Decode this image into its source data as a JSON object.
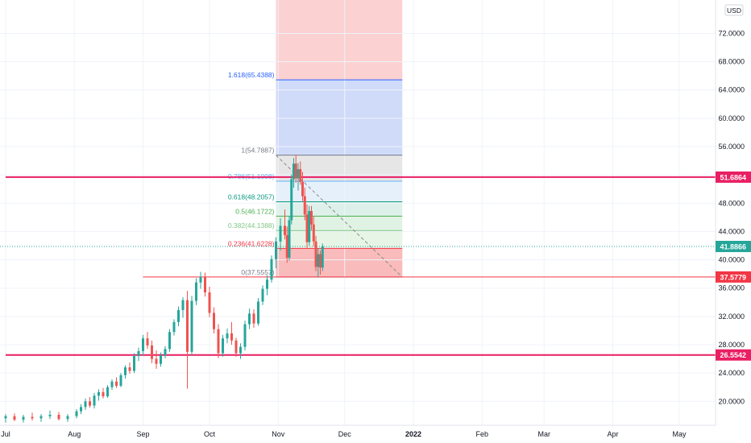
{
  "chart_data": {
    "type": "candlestick",
    "currency": "USD",
    "y_axis": {
      "ticks": [
        "20.0000",
        "24.0000",
        "28.0000",
        "32.0000",
        "36.0000",
        "40.0000",
        "44.0000",
        "48.0000",
        "52.0000",
        "56.0000",
        "60.0000",
        "64.0000",
        "68.0000",
        "72.0000"
      ],
      "tick_values": [
        20,
        24,
        28,
        32,
        36,
        40,
        44,
        48,
        52,
        56,
        60,
        64,
        68,
        72
      ],
      "range": [
        17.3,
        76.5
      ]
    },
    "x_axis": {
      "labels": [
        "Jul",
        "Aug",
        "Sep",
        "Oct",
        "Nov",
        "Dec",
        "2022",
        "Feb",
        "Mar",
        "Apr",
        "May"
      ],
      "label_dates": [
        "2021-07-01",
        "2021-08-01",
        "2021-09-01",
        "2021-10-01",
        "2021-11-01",
        "2021-12-01",
        "2022-01-01",
        "2022-02-01",
        "2022-03-01",
        "2022-04-01",
        "2022-05-01"
      ],
      "range": [
        "2021-07-01",
        "2022-05-31"
      ]
    },
    "horizontal_lines": [
      {
        "value": 51.6864,
        "label": "51.6864",
        "color": "#e91e63",
        "start": "2021-07-01"
      },
      {
        "value": 37.5779,
        "label": "37.5779",
        "color": "#f23645",
        "start": "2021-09-01"
      },
      {
        "value": 26.5542,
        "label": "26.5542",
        "color": "#e91e63",
        "start": "2021-07-01"
      }
    ],
    "last_price": {
      "value": 41.8866,
      "label": "41.8866",
      "color": "#26a69a"
    },
    "fibonacci": {
      "start_date": "2021-10-31",
      "end_date": "2021-12-27",
      "levels": [
        {
          "label": "0(37.5557)",
          "value": 37.5557,
          "color": "#787b86"
        },
        {
          "label": "0.236(41.6228)",
          "value": 41.6228,
          "color": "#f23645"
        },
        {
          "label": "0.382(44.1388)",
          "value": 44.1388,
          "color": "#81c784"
        },
        {
          "label": "0.5(46.1722)",
          "value": 46.1722,
          "color": "#4caf50"
        },
        {
          "label": "0.618(48.2057)",
          "value": 48.2057,
          "color": "#089981"
        },
        {
          "label": "0.786(51.1008)",
          "value": 51.1008,
          "color": "#64b5f6"
        },
        {
          "label": "1(54.7887)",
          "value": 54.7887,
          "color": "#787b86"
        },
        {
          "label": "1.618(65.4388)",
          "value": 65.4388,
          "color": "#2962ff"
        }
      ]
    },
    "candles": [
      {
        "d": "2021-07-01",
        "o": 17.6,
        "h": 18.2,
        "l": 17.0,
        "c": 17.9
      },
      {
        "d": "2021-07-05",
        "o": 17.9,
        "h": 18.3,
        "l": 17.2,
        "c": 17.4
      },
      {
        "d": "2021-07-09",
        "o": 17.4,
        "h": 18.1,
        "l": 17.0,
        "c": 17.8
      },
      {
        "d": "2021-07-13",
        "o": 17.8,
        "h": 18.4,
        "l": 17.3,
        "c": 17.6
      },
      {
        "d": "2021-07-17",
        "o": 17.6,
        "h": 18.2,
        "l": 17.1,
        "c": 17.9
      },
      {
        "d": "2021-07-21",
        "o": 17.9,
        "h": 18.7,
        "l": 17.5,
        "c": 18.1
      },
      {
        "d": "2021-07-25",
        "o": 18.1,
        "h": 18.5,
        "l": 17.3,
        "c": 17.5
      },
      {
        "d": "2021-07-29",
        "o": 17.5,
        "h": 18.2,
        "l": 17.1,
        "c": 17.9
      },
      {
        "d": "2021-08-02",
        "o": 17.9,
        "h": 18.9,
        "l": 17.6,
        "c": 18.6
      },
      {
        "d": "2021-08-04",
        "o": 18.6,
        "h": 19.6,
        "l": 18.2,
        "c": 19.2
      },
      {
        "d": "2021-08-06",
        "o": 19.2,
        "h": 20.4,
        "l": 18.8,
        "c": 20.0
      },
      {
        "d": "2021-08-08",
        "o": 20.0,
        "h": 20.6,
        "l": 19.1,
        "c": 19.4
      },
      {
        "d": "2021-08-10",
        "o": 19.4,
        "h": 21.2,
        "l": 19.0,
        "c": 20.8
      },
      {
        "d": "2021-08-12",
        "o": 20.8,
        "h": 21.7,
        "l": 20.1,
        "c": 21.3
      },
      {
        "d": "2021-08-14",
        "o": 21.3,
        "h": 21.9,
        "l": 20.4,
        "c": 20.7
      },
      {
        "d": "2021-08-16",
        "o": 20.7,
        "h": 22.3,
        "l": 20.5,
        "c": 22.0
      },
      {
        "d": "2021-08-18",
        "o": 22.0,
        "h": 23.1,
        "l": 21.6,
        "c": 22.8
      },
      {
        "d": "2021-08-20",
        "o": 22.8,
        "h": 23.4,
        "l": 21.9,
        "c": 22.2
      },
      {
        "d": "2021-08-22",
        "o": 22.2,
        "h": 24.0,
        "l": 22.0,
        "c": 23.7
      },
      {
        "d": "2021-08-24",
        "o": 23.7,
        "h": 25.1,
        "l": 23.2,
        "c": 24.8
      },
      {
        "d": "2021-08-26",
        "o": 24.8,
        "h": 25.5,
        "l": 23.9,
        "c": 24.3
      },
      {
        "d": "2021-08-28",
        "o": 24.3,
        "h": 26.8,
        "l": 24.0,
        "c": 26.4
      },
      {
        "d": "2021-08-30",
        "o": 26.4,
        "h": 27.6,
        "l": 25.7,
        "c": 27.1
      },
      {
        "d": "2021-09-01",
        "o": 27.1,
        "h": 29.4,
        "l": 26.5,
        "c": 28.9
      },
      {
        "d": "2021-09-03",
        "o": 28.9,
        "h": 29.8,
        "l": 27.4,
        "c": 27.9
      },
      {
        "d": "2021-09-05",
        "o": 27.9,
        "h": 28.6,
        "l": 25.4,
        "c": 26.0
      },
      {
        "d": "2021-09-07",
        "o": 26.0,
        "h": 27.2,
        "l": 24.6,
        "c": 25.3
      },
      {
        "d": "2021-09-09",
        "o": 25.3,
        "h": 26.9,
        "l": 24.9,
        "c": 26.5
      },
      {
        "d": "2021-09-11",
        "o": 26.5,
        "h": 27.8,
        "l": 26.1,
        "c": 27.4
      },
      {
        "d": "2021-09-13",
        "o": 27.4,
        "h": 30.2,
        "l": 27.0,
        "c": 29.8
      },
      {
        "d": "2021-09-15",
        "o": 29.8,
        "h": 31.6,
        "l": 29.3,
        "c": 31.2
      },
      {
        "d": "2021-09-17",
        "o": 31.2,
        "h": 33.4,
        "l": 30.6,
        "c": 32.9
      },
      {
        "d": "2021-09-19",
        "o": 32.9,
        "h": 34.7,
        "l": 31.8,
        "c": 34.3
      },
      {
        "d": "2021-09-21",
        "o": 34.3,
        "h": 35.6,
        "l": 21.8,
        "c": 27.0
      },
      {
        "d": "2021-09-23",
        "o": 27.0,
        "h": 34.9,
        "l": 26.5,
        "c": 34.2
      },
      {
        "d": "2021-09-25",
        "o": 34.2,
        "h": 37.4,
        "l": 33.6,
        "c": 36.8
      },
      {
        "d": "2021-09-27",
        "o": 36.8,
        "h": 38.3,
        "l": 35.9,
        "c": 37.6
      },
      {
        "d": "2021-09-29",
        "o": 37.6,
        "h": 38.2,
        "l": 34.8,
        "c": 35.4
      },
      {
        "d": "2021-10-01",
        "o": 35.4,
        "h": 36.2,
        "l": 31.9,
        "c": 32.5
      },
      {
        "d": "2021-10-03",
        "o": 32.5,
        "h": 33.3,
        "l": 29.6,
        "c": 30.2
      },
      {
        "d": "2021-10-05",
        "o": 30.2,
        "h": 30.9,
        "l": 26.1,
        "c": 26.8
      },
      {
        "d": "2021-10-07",
        "o": 26.8,
        "h": 29.4,
        "l": 26.3,
        "c": 28.9
      },
      {
        "d": "2021-10-09",
        "o": 28.9,
        "h": 30.3,
        "l": 28.2,
        "c": 29.6
      },
      {
        "d": "2021-10-11",
        "o": 29.6,
        "h": 31.2,
        "l": 28.0,
        "c": 28.6
      },
      {
        "d": "2021-10-13",
        "o": 28.6,
        "h": 29.0,
        "l": 26.3,
        "c": 26.8
      },
      {
        "d": "2021-10-15",
        "o": 26.8,
        "h": 28.2,
        "l": 26.0,
        "c": 27.7
      },
      {
        "d": "2021-10-17",
        "o": 27.7,
        "h": 31.4,
        "l": 27.2,
        "c": 30.9
      },
      {
        "d": "2021-10-19",
        "o": 30.9,
        "h": 33.1,
        "l": 30.2,
        "c": 32.4
      },
      {
        "d": "2021-10-21",
        "o": 32.4,
        "h": 33.0,
        "l": 30.4,
        "c": 31.0
      },
      {
        "d": "2021-10-23",
        "o": 31.0,
        "h": 34.6,
        "l": 30.7,
        "c": 34.1
      },
      {
        "d": "2021-10-25",
        "o": 34.1,
        "h": 36.4,
        "l": 33.6,
        "c": 35.9
      },
      {
        "d": "2021-10-27",
        "o": 35.9,
        "h": 37.8,
        "l": 35.0,
        "c": 37.2
      },
      {
        "d": "2021-10-29",
        "o": 37.2,
        "h": 40.6,
        "l": 36.8,
        "c": 40.1
      },
      {
        "d": "2021-10-31",
        "o": 40.1,
        "h": 43.2,
        "l": 38.8,
        "c": 42.6
      },
      {
        "d": "2021-11-02",
        "o": 42.6,
        "h": 45.9,
        "l": 41.3,
        "c": 44.8
      },
      {
        "d": "2021-11-04",
        "o": 44.8,
        "h": 47.1,
        "l": 42.9,
        "c": 43.5
      },
      {
        "d": "2021-11-05",
        "o": 43.5,
        "h": 44.7,
        "l": 39.6,
        "c": 40.3
      },
      {
        "d": "2021-11-06",
        "o": 40.3,
        "h": 46.2,
        "l": 39.9,
        "c": 45.6
      },
      {
        "d": "2021-11-07",
        "o": 45.6,
        "h": 52.1,
        "l": 45.0,
        "c": 51.4
      },
      {
        "d": "2021-11-08",
        "o": 51.4,
        "h": 54.4,
        "l": 50.2,
        "c": 53.6
      },
      {
        "d": "2021-11-09",
        "o": 53.6,
        "h": 54.8,
        "l": 50.9,
        "c": 51.5
      },
      {
        "d": "2021-11-10",
        "o": 51.5,
        "h": 53.7,
        "l": 49.8,
        "c": 52.8
      },
      {
        "d": "2021-11-11",
        "o": 52.8,
        "h": 53.9,
        "l": 50.6,
        "c": 51.0
      },
      {
        "d": "2021-11-12",
        "o": 51.0,
        "h": 52.4,
        "l": 48.3,
        "c": 49.0
      },
      {
        "d": "2021-11-13",
        "o": 49.0,
        "h": 50.2,
        "l": 45.6,
        "c": 46.4
      },
      {
        "d": "2021-11-14",
        "o": 46.4,
        "h": 47.8,
        "l": 41.7,
        "c": 42.5
      },
      {
        "d": "2021-11-15",
        "o": 42.5,
        "h": 47.6,
        "l": 42.0,
        "c": 46.9
      },
      {
        "d": "2021-11-16",
        "o": 46.9,
        "h": 47.6,
        "l": 44.2,
        "c": 45.0
      },
      {
        "d": "2021-11-17",
        "o": 45.0,
        "h": 46.1,
        "l": 41.9,
        "c": 42.6
      },
      {
        "d": "2021-11-18",
        "o": 42.6,
        "h": 43.4,
        "l": 38.4,
        "c": 39.0
      },
      {
        "d": "2021-11-19",
        "o": 39.0,
        "h": 41.6,
        "l": 37.6,
        "c": 40.8
      },
      {
        "d": "2021-11-20",
        "o": 40.8,
        "h": 41.3,
        "l": 37.9,
        "c": 38.9
      },
      {
        "d": "2021-11-21",
        "o": 38.9,
        "h": 42.3,
        "l": 38.4,
        "c": 41.9
      }
    ]
  }
}
